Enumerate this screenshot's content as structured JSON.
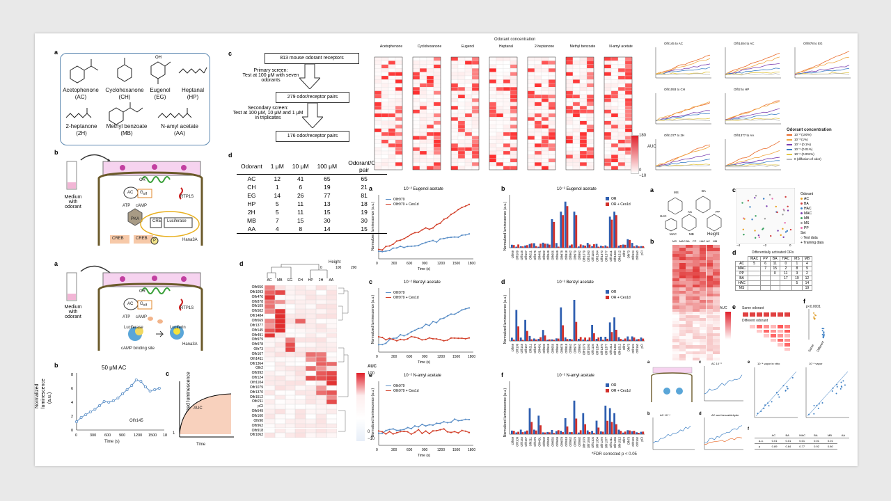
{
  "fig1": {
    "a": {
      "label": "a",
      "molecules": [
        {
          "name": "Acetophenone",
          "abbr": "(AC)"
        },
        {
          "name": "Cyclohexanone",
          "abbr": "(CH)"
        },
        {
          "name": "Eugenol",
          "abbr": "(EG)"
        },
        {
          "name": "Heptanal",
          "abbr": "(HP)"
        },
        {
          "name": "2-heptanone",
          "abbr": "(2H)"
        },
        {
          "name": "Methyl benzoate",
          "abbr": "(MB)"
        },
        {
          "name": "N-amyl acetate",
          "abbr": "(AA)"
        }
      ]
    },
    "b": {
      "label": "b",
      "medium": "Medium\nwith\nodorant",
      "nodes": {
        "or": "OR",
        "rtp": "RTP1S",
        "ac": "AC",
        "atp": "ATP",
        "camp": "cAMP",
        "golf": "G",
        "golf_sub": "olf",
        "pka": "PKA",
        "cre": "CRE",
        "luciferase": "Luciferase",
        "creb1": "CREB",
        "creb2": "CREB",
        "p": "P",
        "cell": "Hana3A"
      }
    },
    "c": {
      "label": "c",
      "steps": [
        "813 mouse odorant receptors",
        "279 odor/receptor pairs",
        "176 odor/receptor pairs"
      ],
      "primary": "Primary screen:\nTest at 100 μM with seven odorants",
      "secondary": "Secondary screen:\nTest at 100 μM, 10 μM and 1 μM\nin triplicates"
    },
    "d": {
      "label": "d",
      "headers": [
        "Odorant",
        "1 μM",
        "10 μM",
        "100 μM",
        "Odorant/OR pair"
      ],
      "rows": [
        [
          "AC",
          "12",
          "41",
          "65",
          "65"
        ],
        [
          "CH",
          "1",
          "6",
          "19",
          "21"
        ],
        [
          "EG",
          "14",
          "26",
          "77",
          "81"
        ],
        [
          "HP",
          "5",
          "11",
          "13",
          "18"
        ],
        [
          "2H",
          "5",
          "11",
          "15",
          "19"
        ],
        [
          "MB",
          "7",
          "15",
          "30",
          "30"
        ],
        [
          "AA",
          "4",
          "8",
          "14",
          "15"
        ]
      ]
    },
    "heatmap_top": {
      "header": "Odorant concentration",
      "odorants": [
        "Acetophenone",
        "Cyclohexanone",
        "Eugenol",
        "Heptanal",
        "2-heptanone",
        "Methyl benzoate",
        "N-amyl acetate"
      ],
      "legend_title": "AUC",
      "legend_max": "180",
      "legend_zero": "0",
      "legend_min": "−10"
    }
  },
  "fig2": {
    "a": {
      "label": "a",
      "medium": "Medium\nwith\nodorant",
      "nodes": {
        "or": "OR",
        "rtp": "RTP1S",
        "ac": "AC",
        "atp": "ATP",
        "camp": "cAMP",
        "golf": "G",
        "golf_sub": "olf",
        "luciferase": "Luciferase",
        "luciferin": "Luciferin",
        "site": "cAMP binding site",
        "cell": "Hana3A"
      }
    },
    "b": {
      "label": "b",
      "title": "50 μM AC",
      "ylabel": "Normalized luminescence\n(a.u.)",
      "xlabel": "Time (s)",
      "legend": "Olfr145"
    },
    "c": {
      "label": "c",
      "ylabel": "Normalized luminescence",
      "xlabel": "Time",
      "auc": "AUC",
      "y1": "1"
    },
    "d": {
      "label": "d",
      "legend_title": "AUC",
      "legend_max": "100",
      "legend_mid": "0",
      "legend_min": "−10",
      "height_label": "Height",
      "height_ticks": [
        "0",
        "100",
        "200"
      ],
      "columns": [
        "AC",
        "MB",
        "EG",
        "CH",
        "HP",
        "2H",
        "AA"
      ],
      "rows": [
        "Olfr556",
        "Olfr1093",
        "Olfr476",
        "Olfr878",
        "Olfr109",
        "Olfr502",
        "Olfr1484",
        "Olfr669",
        "Olfr1377",
        "Olfr145",
        "Olfr491",
        "Olfr979",
        "Olfr978",
        "Olfr73",
        "Olfr167",
        "Olfr1411",
        "Olfr1364",
        "Olfr2",
        "Olfr992",
        "Olfr124",
        "Olfr1104",
        "Olfr1079",
        "Olfr1370",
        "Olfr1512",
        "Olfr211",
        "pCI",
        "Olfr549",
        "Olfr160",
        "Olfr90",
        "Olfr962",
        "Olfr918",
        "Olfr1062"
      ]
    }
  },
  "fig3": {
    "a": {
      "label": "a",
      "title": "10⁻² Eugenol acetate",
      "ylabel": "Normalized luminescence (a.u.)",
      "xlabel": "Time (s)",
      "legend": [
        "Olfr979",
        "Olfr979 + Ces1d"
      ]
    },
    "b": {
      "label": "b",
      "title": "10⁻² Eugenol acetate",
      "ylabel": "Normalized luminescence (a.u.)",
      "legend": [
        "OR",
        "OR + Ces1d"
      ]
    },
    "c": {
      "label": "c",
      "title": "10⁻² Benzyl acetate",
      "ylabel": "Normalized luminescence (a.u.)",
      "xlabel": "Time (s)",
      "legend": [
        "Olfr979",
        "Olfr979 + Ces1d"
      ]
    },
    "d": {
      "label": "d",
      "title": "10⁻² Benzyl acetate",
      "ylabel": "Normalized luminescence (a.u.)",
      "legend": [
        "OR",
        "OR + Ces1d"
      ]
    },
    "e": {
      "label": "e",
      "title": "10⁻² N-amyl acetate",
      "ylabel": "Normalized luminescence (a.u.)",
      "xlabel": "Time (s)",
      "legend": [
        "Olfr979",
        "Olfr979 + Ces1d"
      ]
    },
    "f": {
      "label": "f",
      "title": "10⁻² N-amyl acetate",
      "ylabel": "Normalized luminescence (a.u.)",
      "legend": [
        "OR",
        "OR + Ces1d"
      ],
      "footnote": "*FDR corrected p < 0.05"
    },
    "x_ticks": [
      "0",
      "300",
      "600",
      "900",
      "1200",
      "1500",
      "1800"
    ],
    "bar_categories": [
      "Olfr69",
      "Olfr109",
      "Olfr145",
      "Olfr167",
      "Olfr211",
      "Olfr476",
      "Olfr491",
      "Olfr502",
      "Olfr549",
      "Olfr556",
      "Olfr669",
      "Olfr878",
      "Olfr918",
      "Olfr962",
      "Olfr979",
      "Olfr992",
      "Olfr1079",
      "Olfr1093",
      "Olfr1104",
      "Olfr1364",
      "Olfr1370",
      "Olfr1377",
      "Olfr1411",
      "Olfr1484",
      "Olfr1512",
      "Olfr2",
      "Olfr73",
      "Olfr124",
      "Olfr160",
      "pCI"
    ]
  },
  "fig4": {
    "legend_title": "Odorant concentration",
    "legend_items": [
      "10⁻² (100%)",
      "10⁻³ (1%)",
      "10⁻⁴ (0.1%)",
      "10⁻⁵ (0.01%)",
      "10⁻⁶ (0.001%)",
      "0 (diffusion of odor)"
    ],
    "panel_titles": [
      "Olfr145 to AC",
      "Olfr1484 to AC",
      "Olfr878 to EG",
      "Olfr1093 to CH",
      "Olfr2 to HP",
      "Olfr1377 to 2H",
      "Olfr1377 to AA"
    ]
  },
  "fig5": {
    "a": {
      "label": "a",
      "nodes": [
        "MS",
        "BA",
        "HAC",
        "PP",
        "AC",
        "MAC",
        "MB"
      ]
    },
    "b": {
      "label": "b",
      "cols": [
        "MS",
        "MAC",
        "BA",
        "PP",
        "HAC",
        "AC",
        "MB"
      ],
      "legend_title": "AUC",
      "height": "Height"
    },
    "c": {
      "label": "c",
      "odorant_title": "Odorant",
      "odorants": [
        "AC",
        "BA",
        "HAC",
        "MAC",
        "MB",
        "MS",
        "PP"
      ],
      "set_title": "Set",
      "sets": [
        "Test data",
        "Training data"
      ],
      "x_ticks": [
        "−4",
        "−2",
        "0"
      ]
    },
    "d": {
      "label": "d",
      "title": "Differentially activated ORs",
      "headers": [
        "MAC",
        "PP",
        "BA",
        "HAC",
        "MS",
        "MB"
      ],
      "rows": [
        [
          "AC",
          "5",
          "6",
          "11",
          "0",
          "1",
          "4"
        ],
        [
          "MAC",
          "",
          "7",
          "15",
          "2",
          "8",
          "9"
        ],
        [
          "PP",
          "",
          "",
          "0",
          "11",
          "3",
          "2"
        ],
        [
          "BA",
          "",
          "",
          "",
          "17",
          "19",
          "12"
        ],
        [
          "HAC",
          "",
          "",
          "",
          "",
          "5",
          "14"
        ],
        [
          "MS",
          "",
          "",
          "",
          "",
          "",
          "19"
        ]
      ]
    },
    "e": {
      "label": "e",
      "same": "Same odorant",
      "different": "Different odorant"
    },
    "f": {
      "label": "f",
      "pval": "p<0.0001",
      "cats": [
        "Same",
        "Different"
      ]
    }
  },
  "fig6": {
    "labels": [
      "a",
      "b",
      "c",
      "d",
      "e",
      "f"
    ],
    "b_title": "AC 10⁻⁴",
    "c_title": "AC 10⁻³",
    "d_title": "AC and benzaldehyde",
    "e_titles": [
      "10⁻⁴ vapor in vitro",
      "10⁻⁴ vapor"
    ],
    "f_headers": [
      "AC",
      "BA",
      "MAC",
      "BA",
      "MB",
      "AA"
    ],
    "f_row1": [
      "a.u.",
      "0.01",
      "0.01",
      "0.01",
      "0.01",
      "0.01"
    ],
    "f_row2": [
      "p",
      "0.89",
      "0.84",
      "0.77",
      "0.92",
      "0.80"
    ]
  }
}
